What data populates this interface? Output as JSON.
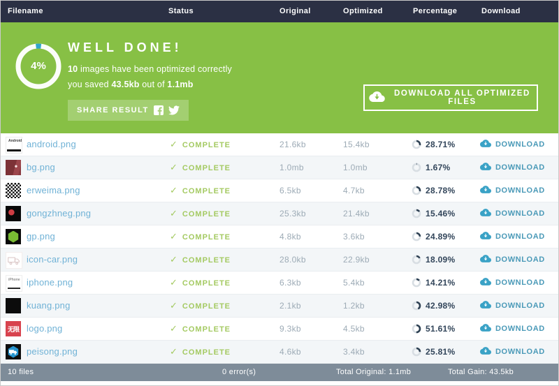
{
  "colors": {
    "green": "#87c045",
    "navy": "#2b3044",
    "footer_gray": "#7e8c99",
    "link_blue": "#70b2d6",
    "cloud_blue": "#3aa2c6",
    "cloud_text": "#4b9ab8",
    "dark_text": "#32455a",
    "complete_green": "#a4ca62",
    "size_gray": "#9dabb6",
    "ring_blue": "#31a5cc",
    "row_alt": "#f3f6f8",
    "row_border": "#e9edf0"
  },
  "table": {
    "columns": [
      "Filename",
      "Status",
      "Original",
      "Optimized",
      "Percentage",
      "Download"
    ],
    "status_label": "COMPLETE",
    "check_glyph": "✓",
    "download_label": "DOWNLOAD",
    "files": [
      {
        "name": "android.png",
        "original": "21.6kb",
        "optimized": "15.4kb",
        "percent": "28.71%",
        "thumb": {
          "kind": "android-banner",
          "text": "Android"
        }
      },
      {
        "name": "bg.png",
        "original": "1.0mb",
        "optimized": "1.0mb",
        "percent": "1.67%",
        "thumb": {
          "kind": "red-photo"
        }
      },
      {
        "name": "erweima.png",
        "original": "6.5kb",
        "optimized": "4.7kb",
        "percent": "28.78%",
        "thumb": {
          "kind": "qr-code"
        }
      },
      {
        "name": "gongzhneg.png",
        "original": "25.3kb",
        "optimized": "21.4kb",
        "percent": "15.46%",
        "thumb": {
          "kind": "black-red-dot"
        }
      },
      {
        "name": "gp.png",
        "original": "4.8kb",
        "optimized": "3.6kb",
        "percent": "24.89%",
        "thumb": {
          "kind": "green-hexagon"
        }
      },
      {
        "name": "icon-car.png",
        "original": "28.0kb",
        "optimized": "22.9kb",
        "percent": "18.09%",
        "thumb": {
          "kind": "truck-outline"
        }
      },
      {
        "name": "iphone.png",
        "original": "6.3kb",
        "optimized": "5.4kb",
        "percent": "14.21%",
        "thumb": {
          "kind": "iphone-banner",
          "text": "iPhone"
        }
      },
      {
        "name": "kuang.png",
        "original": "2.1kb",
        "optimized": "1.2kb",
        "percent": "42.98%",
        "thumb": {
          "kind": "black-square"
        }
      },
      {
        "name": "logo.png",
        "original": "9.3kb",
        "optimized": "4.5kb",
        "percent": "51.61%",
        "thumb": {
          "kind": "red-logo",
          "text": "无限"
        }
      },
      {
        "name": "peisong.png",
        "original": "4.6kb",
        "optimized": "3.4kb",
        "percent": "25.81%",
        "thumb": {
          "kind": "blue-hexagon-truck"
        }
      }
    ]
  },
  "banner": {
    "percent_ring": {
      "value": "4%",
      "percent_number": 4
    },
    "title": "WELL DONE!",
    "line1_count": "10",
    "line1_rest": " images have been optimized correctly",
    "line2_pre": "you saved ",
    "line2_saved": "43.5kb",
    "line2_mid": " out of ",
    "line2_total": "1.1mb",
    "share_label": "SHARE RESULT",
    "download_all_label": "DOWNLOAD ALL OPTIMIZED FILES"
  },
  "footer": {
    "files": "10 files",
    "errors": "0 error(s)",
    "total_original": "Total Original: 1.1mb",
    "total_gain": "Total Gain: 43.5kb"
  }
}
